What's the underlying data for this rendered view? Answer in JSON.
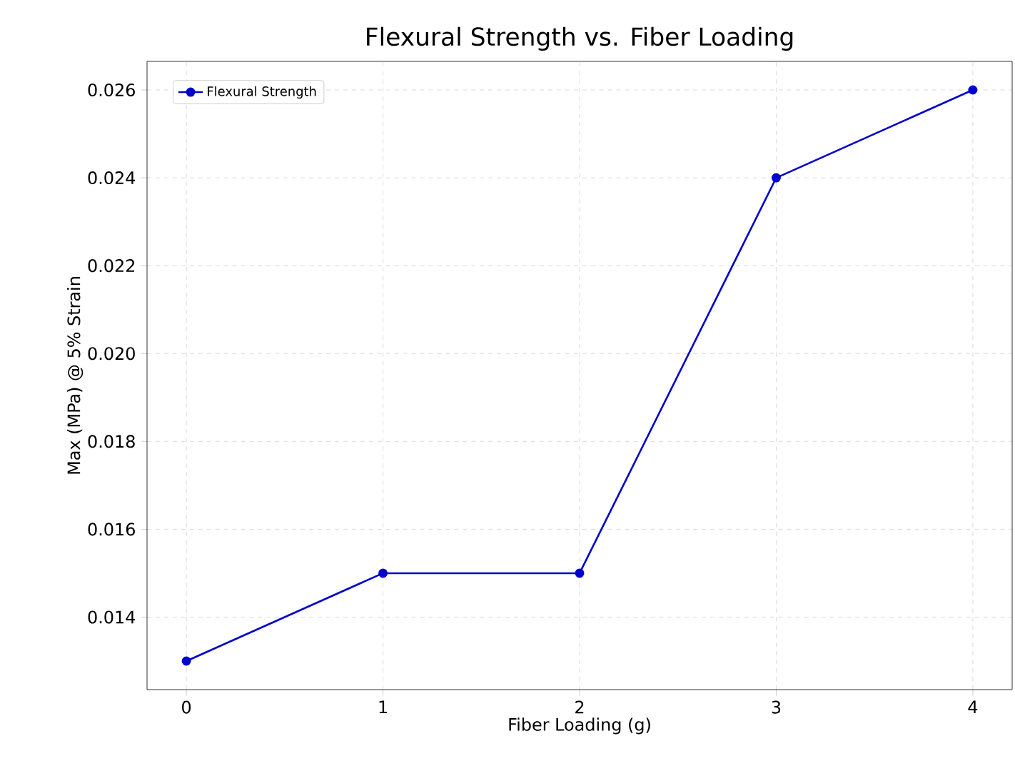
{
  "chart_data": {
    "type": "line",
    "title": "Flexural Strength vs. Fiber Loading",
    "xlabel": "Fiber Loading (g)",
    "ylabel": "Max (MPa) @ 5% Strain",
    "x": [
      0,
      1,
      2,
      3,
      4
    ],
    "series": [
      {
        "name": "Flexural Strength",
        "color": "#0000cd",
        "values": [
          0.013,
          0.015,
          0.015,
          0.024,
          0.026
        ]
      }
    ],
    "xlim": [
      -0.2,
      4.2
    ],
    "xticks": [
      0,
      1,
      2,
      3,
      4
    ],
    "ylim": [
      0.01235,
      0.02665
    ],
    "yticks": [
      0.014,
      0.016,
      0.018,
      {
        "value": 0.02,
        "label": "0.020"
      },
      0.022,
      0.024,
      0.026
    ],
    "grid": true,
    "legend": "top left",
    "marker": "circle",
    "line_style": "solid"
  }
}
